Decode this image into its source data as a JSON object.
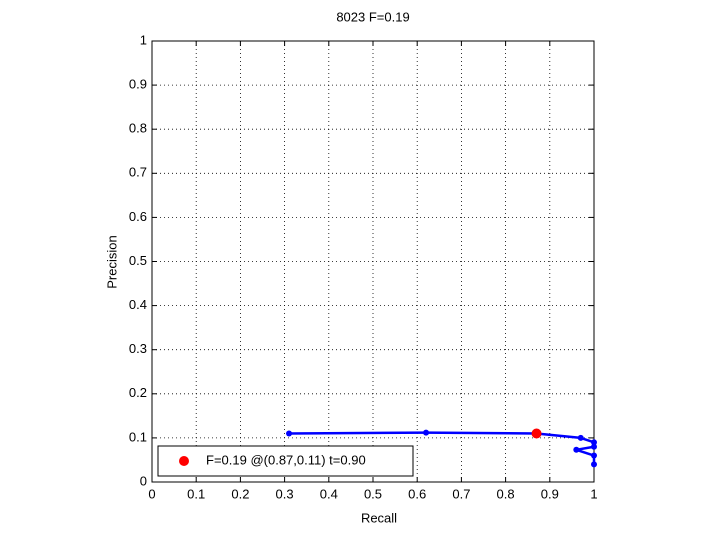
{
  "chart_data": {
    "type": "line",
    "title": "8023 F=0.19",
    "x_label": "Recall",
    "y_label": "Precision",
    "xlim": [
      0,
      1
    ],
    "ylim": [
      0,
      1
    ],
    "xticks": [
      0,
      0.1,
      0.2,
      0.3,
      0.4,
      0.5,
      0.6,
      0.7,
      0.8,
      0.9,
      1
    ],
    "yticks": [
      0,
      0.1,
      0.2,
      0.3,
      0.4,
      0.5,
      0.6,
      0.7,
      0.8,
      0.9,
      1
    ],
    "grid": true,
    "legend_position": "lower left",
    "series": [
      {
        "color": "#0000ff",
        "x": [
          0.31,
          0.62,
          0.87,
          0.97,
          1.0,
          1.0,
          0.96,
          1.0,
          1.0
        ],
        "values": [
          0.11,
          0.112,
          0.11,
          0.1,
          0.09,
          0.08,
          0.073,
          0.06,
          0.04
        ]
      },
      {
        "name": "F=0.19 @(0.87,0.11) t=0.90",
        "color": "#ff0000",
        "x": [
          0.87
        ],
        "values": [
          0.11
        ]
      }
    ]
  }
}
